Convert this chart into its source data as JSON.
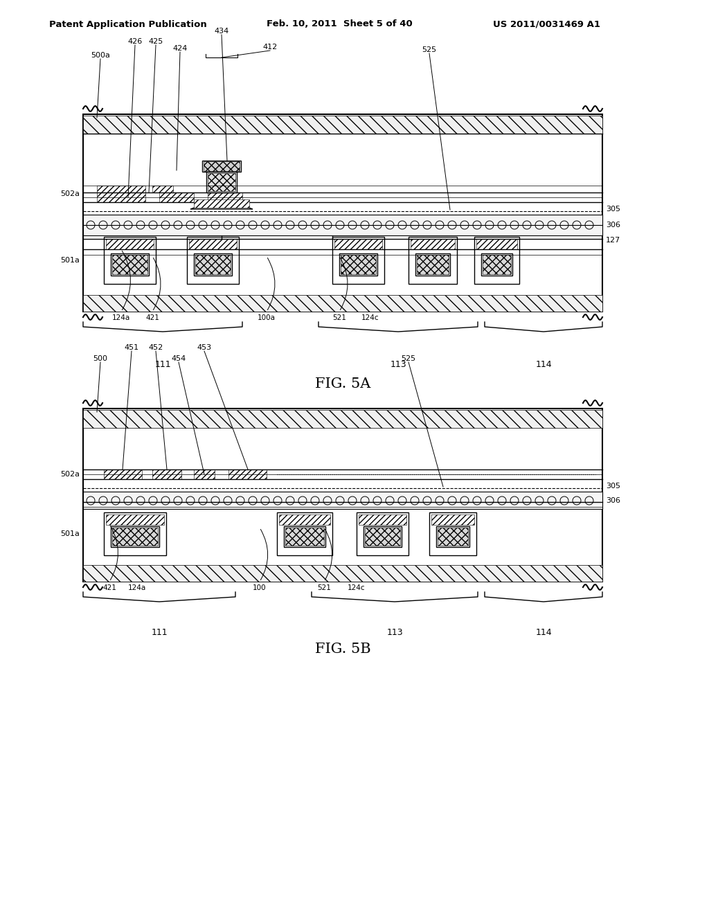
{
  "title_left": "Patent Application Publication",
  "title_mid": "Feb. 10, 2011  Sheet 5 of 40",
  "title_right": "US 2011/0031469 A1",
  "fig5a_label": "FIG. 5A",
  "fig5b_label": "FIG. 5B",
  "background": "#ffffff",
  "line_color": "#000000",
  "fig5a_labels": {
    "top": [
      "500a",
      "425",
      "426",
      "424",
      "434",
      "412",
      "525"
    ],
    "left": [
      "502a",
      "501a"
    ],
    "right": [
      "305",
      "306",
      "127"
    ],
    "bottom": [
      "124a",
      "421",
      "100a",
      "521",
      "124c",
      "111",
      "113",
      "114"
    ]
  },
  "fig5b_labels": {
    "top": [
      "500",
      "451",
      "452",
      "454",
      "453",
      "525"
    ],
    "left": [
      "502a",
      "501a"
    ],
    "right": [
      "305",
      "306"
    ],
    "bottom": [
      "421",
      "124a",
      "100",
      "521",
      "124c",
      "111",
      "113",
      "114"
    ]
  }
}
